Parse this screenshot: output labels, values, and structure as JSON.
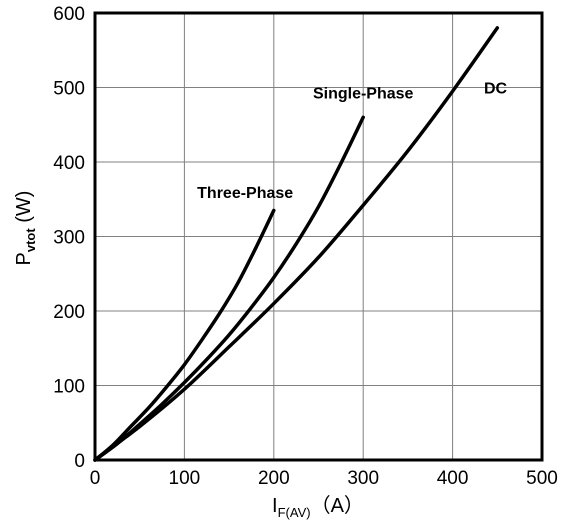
{
  "chart_data": {
    "type": "line",
    "title": "",
    "xlabel": {
      "main": "I",
      "sub": "F(AV)",
      "unit": "（A）"
    },
    "ylabel": {
      "main": "P",
      "sub": "vtot",
      "unit": " (W)"
    },
    "xlim": [
      0,
      500
    ],
    "ylim": [
      0,
      600
    ],
    "xticks": [
      0,
      100,
      200,
      300,
      400,
      500
    ],
    "yticks": [
      0,
      100,
      200,
      300,
      400,
      500,
      600
    ],
    "grid": true,
    "legend": "none",
    "series": [
      {
        "name": "Three-Phase",
        "x": [
          0,
          20,
          40,
          60,
          80,
          100,
          120,
          140,
          160,
          180,
          200
        ],
        "y": [
          0,
          20,
          45,
          70,
          98,
          128,
          162,
          198,
          238,
          285,
          335
        ]
      },
      {
        "name": "Single-Phase",
        "x": [
          0,
          25,
          50,
          75,
          100,
          125,
          150,
          175,
          200,
          225,
          250,
          275,
          300
        ],
        "y": [
          0,
          22,
          48,
          75,
          104,
          135,
          168,
          205,
          245,
          290,
          340,
          398,
          460
        ]
      },
      {
        "name": "DC",
        "x": [
          0,
          50,
          100,
          150,
          200,
          250,
          300,
          350,
          400,
          450
        ],
        "y": [
          0,
          45,
          95,
          152,
          210,
          272,
          342,
          415,
          495,
          580
        ]
      }
    ],
    "annotations": [
      {
        "series": "Three-Phase",
        "text": "Three-Phase",
        "x": 168,
        "y": 352
      },
      {
        "series": "Single-Phase",
        "text": "Single-Phase",
        "x": 300,
        "y": 485
      },
      {
        "series": "DC",
        "text": "DC",
        "x": 448,
        "y": 492
      }
    ]
  }
}
